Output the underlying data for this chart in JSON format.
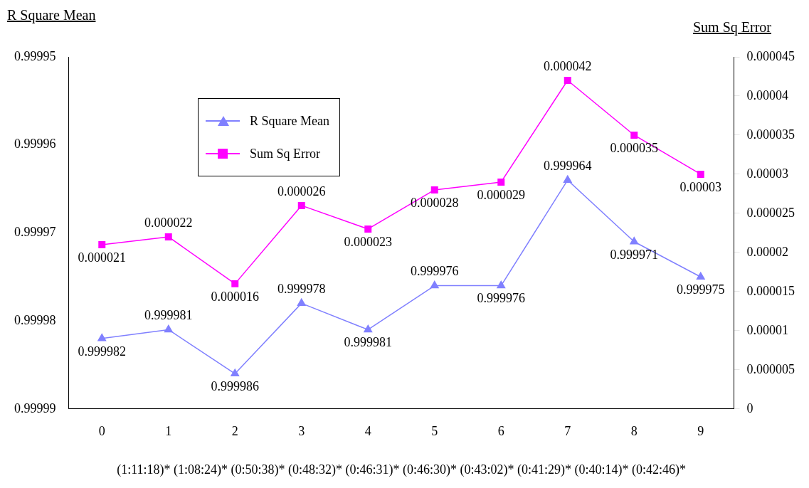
{
  "chart_data": {
    "type": "line",
    "categories": [
      "0",
      "1",
      "2",
      "3",
      "4",
      "5",
      "6",
      "7",
      "8",
      "9"
    ],
    "xlabel": "(1:11:18)* (1:08:24)* (0:50:38)* (0:48:32)* (0:46:31)* (0:46:30)* (0:43:02)* (0:41:29)* (0:40:14)* (0:42:46)*",
    "ylabel": "R Square Mean",
    "y2label": "Sum Sq Error",
    "ylim": [
      0.99999,
      0.99995
    ],
    "yticks": [
      0.99999,
      0.99998,
      0.99997,
      0.99996,
      0.99995
    ],
    "y2lim": [
      0,
      4.5e-05
    ],
    "y2ticks": [
      0,
      {
        "value": 5e-06,
        "label": "0.000005"
      },
      {
        "value": 1e-05,
        "label": "0.00001"
      },
      {
        "value": 1.5e-05,
        "label": "0.000015"
      },
      {
        "value": 2e-05,
        "label": "0.00002"
      },
      {
        "value": 2.5e-05,
        "label": "0.000025"
      },
      {
        "value": 3e-05,
        "label": "0.00003"
      },
      {
        "value": 3.5e-05,
        "label": "0.000035"
      },
      {
        "value": 4e-05,
        "label": "0.00004"
      },
      {
        "value": 4.5e-05,
        "label": "0.000045"
      }
    ],
    "series": [
      {
        "name": "R Square Mean",
        "color": "#8080ff",
        "marker": "triangle",
        "values": [
          0.999982,
          0.999981,
          0.999986,
          0.999978,
          0.999981,
          0.999976,
          0.999976,
          0.999964,
          0.999971,
          0.999975
        ],
        "value_labels": [
          "0.999982",
          "0.999981",
          "0.999986",
          "0.999978",
          "0.999981",
          "0.999976",
          "0.999976",
          "0.999964",
          "0.999971",
          "0.999975"
        ]
      },
      {
        "name": "Sum Sq Error",
        "color": "#ff00ff",
        "marker": "square",
        "axis": "y2",
        "values": [
          2.1e-05,
          2.2e-05,
          1.6e-05,
          2.6e-05,
          2.3e-05,
          2.8e-05,
          2.9e-05,
          4.2e-05,
          3.5e-05,
          3e-05
        ],
        "value_labels": [
          "0.000021",
          "0.000022",
          "0.000016",
          "0.000026",
          "0.000023",
          "0.000028",
          "0.000029",
          "0.000042",
          "0.000035",
          "0.00003"
        ]
      }
    ],
    "legend": "top left",
    "grid": false
  }
}
